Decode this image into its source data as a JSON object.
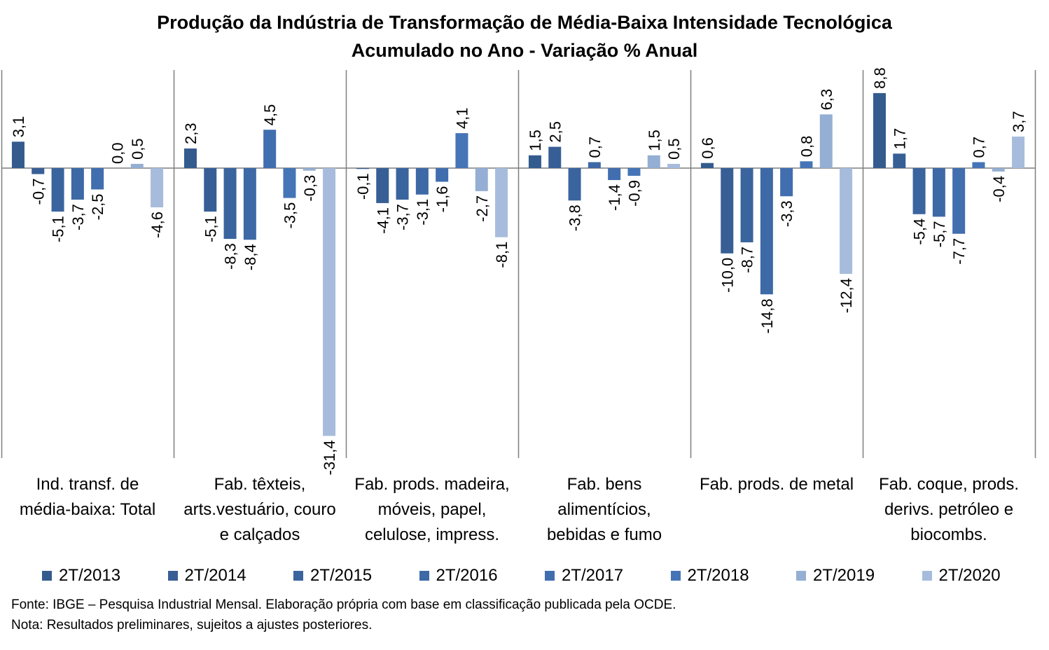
{
  "title_lines": [
    "Produção da Indústria de Transformação de Média-Baixa Intensidade Tecnológica",
    "Acumulado no Ano - Variação % Anual"
  ],
  "chart_data": {
    "type": "bar",
    "categories": [
      [
        "Ind. transf. de",
        "média-baixa: Total"
      ],
      [
        "Fab. têxteis,",
        "arts.vestuário, couro",
        "e calçados"
      ],
      [
        "Fab. prods. madeira,",
        "móveis, papel,",
        "celulose, impress."
      ],
      [
        "Fab. bens",
        "alimentícios,",
        "bebidas e fumo"
      ],
      [
        "Fab. prods. de metal"
      ],
      [
        "Fab. coque, prods.",
        "derivs. petróleo e",
        "biocombs."
      ]
    ],
    "series": [
      {
        "name": "2T/2013",
        "color": "#335B8E",
        "values": [
          3.1,
          2.3,
          -0.1,
          1.5,
          0.6,
          8.8
        ]
      },
      {
        "name": "2T/2014",
        "color": "#375F96",
        "values": [
          -0.7,
          -5.1,
          -4.1,
          2.5,
          -10.0,
          1.7
        ]
      },
      {
        "name": "2T/2015",
        "color": "#3A649E",
        "values": [
          -5.1,
          -8.3,
          -3.7,
          -3.8,
          -8.7,
          -5.4
        ]
      },
      {
        "name": "2T/2016",
        "color": "#3D69A6",
        "values": [
          -3.7,
          -8.4,
          -3.1,
          0.7,
          -14.8,
          -5.7
        ]
      },
      {
        "name": "2T/2017",
        "color": "#416EAF",
        "values": [
          -2.5,
          4.5,
          -1.6,
          -1.4,
          -3.3,
          -7.7
        ]
      },
      {
        "name": "2T/2018",
        "color": "#4575B7",
        "values": [
          0.0,
          -3.5,
          4.1,
          -0.9,
          0.8,
          0.7
        ]
      },
      {
        "name": "2T/2019",
        "color": "#95AED3",
        "values": [
          0.5,
          -0.3,
          -2.7,
          1.5,
          6.3,
          -0.4
        ]
      },
      {
        "name": "2T/2020",
        "color": "#A7BCDC",
        "values": [
          -4.6,
          -31.4,
          -8.1,
          0.5,
          -12.4,
          3.7
        ]
      }
    ],
    "data_labels": [
      [
        "3,1",
        "-0,7",
        "-5,1",
        "-3,7",
        "-2,5",
        "0,0",
        "0,5",
        "-4,6"
      ],
      [
        "2,3",
        "-5,1",
        "-8,3",
        "-8,4",
        "4,5",
        "-3,5",
        "-0,3",
        "-31,4"
      ],
      [
        "-0,1",
        "-4,1",
        "-3,7",
        "-3,1",
        "-1,6",
        "4,1",
        "-2,7",
        "-8,1"
      ],
      [
        "1,5",
        "2,5",
        "-3,8",
        "0,7",
        "-1,4",
        "-0,9",
        "1,5",
        "0,5"
      ],
      [
        "0,6",
        "-10,0",
        "-8,7",
        "-14,8",
        "-3,3",
        "0,8",
        "6,3",
        "-12,4"
      ],
      [
        "8,8",
        "1,7",
        "-5,4",
        "-5,7",
        "-7,7",
        "0,7",
        "-0,4",
        "3,7"
      ]
    ],
    "ylim": [
      -34,
      11.5
    ],
    "gridlines": false,
    "legend_position": "bottom"
  },
  "notes": [
    "Fonte: IBGE – Pesquisa Industrial Mensal. Elaboração própria com base em classificação publicada pela OCDE.",
    "Nota: Resultados preliminares,  sujeitos a ajustes posteriores."
  ]
}
